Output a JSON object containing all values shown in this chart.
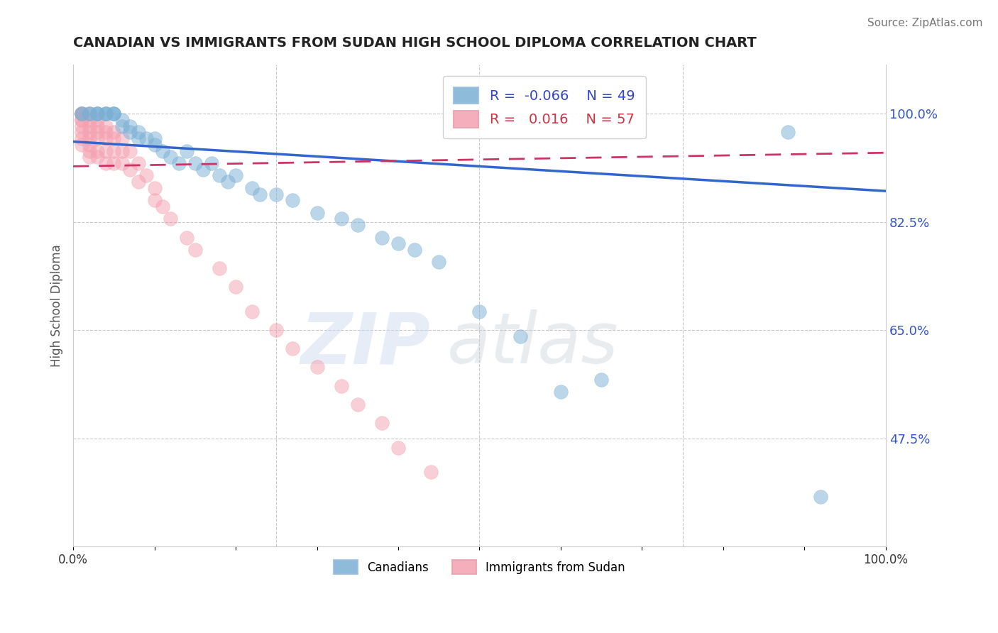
{
  "title": "CANADIAN VS IMMIGRANTS FROM SUDAN HIGH SCHOOL DIPLOMA CORRELATION CHART",
  "source": "Source: ZipAtlas.com",
  "ylabel": "High School Diploma",
  "ytick_labels": [
    "100.0%",
    "82.5%",
    "65.0%",
    "47.5%"
  ],
  "ytick_values": [
    1.0,
    0.825,
    0.65,
    0.475
  ],
  "ymin": 0.3,
  "ymax": 1.08,
  "xmin": 0.0,
  "xmax": 1.0,
  "canadian_R": -0.066,
  "canadian_N": 49,
  "sudan_R": 0.016,
  "sudan_N": 57,
  "canadian_color": "#7bafd4",
  "sudan_color": "#f4a0b0",
  "canadian_line_color": "#3366cc",
  "sudan_line_color": "#cc3366",
  "legend_label_canadian": "Canadians",
  "legend_label_sudan": "Immigrants from Sudan",
  "canadian_x": [
    0.01,
    0.01,
    0.02,
    0.02,
    0.03,
    0.03,
    0.03,
    0.04,
    0.04,
    0.04,
    0.05,
    0.05,
    0.05,
    0.06,
    0.06,
    0.07,
    0.07,
    0.08,
    0.08,
    0.09,
    0.1,
    0.1,
    0.11,
    0.12,
    0.13,
    0.14,
    0.15,
    0.16,
    0.17,
    0.18,
    0.19,
    0.2,
    0.22,
    0.23,
    0.25,
    0.27,
    0.3,
    0.33,
    0.35,
    0.38,
    0.4,
    0.42,
    0.45,
    0.5,
    0.55,
    0.6,
    0.65,
    0.88,
    0.92
  ],
  "canadian_y": [
    1.0,
    1.0,
    1.0,
    1.0,
    1.0,
    1.0,
    1.0,
    1.0,
    1.0,
    1.0,
    1.0,
    1.0,
    1.0,
    0.99,
    0.98,
    0.98,
    0.97,
    0.96,
    0.97,
    0.96,
    0.95,
    0.96,
    0.94,
    0.93,
    0.92,
    0.94,
    0.92,
    0.91,
    0.92,
    0.9,
    0.89,
    0.9,
    0.88,
    0.87,
    0.87,
    0.86,
    0.84,
    0.83,
    0.82,
    0.8,
    0.79,
    0.78,
    0.76,
    0.68,
    0.64,
    0.55,
    0.57,
    0.97,
    0.38
  ],
  "sudan_x": [
    0.01,
    0.01,
    0.01,
    0.01,
    0.01,
    0.01,
    0.01,
    0.01,
    0.01,
    0.02,
    0.02,
    0.02,
    0.02,
    0.02,
    0.02,
    0.02,
    0.02,
    0.03,
    0.03,
    0.03,
    0.03,
    0.03,
    0.03,
    0.04,
    0.04,
    0.04,
    0.04,
    0.04,
    0.05,
    0.05,
    0.05,
    0.05,
    0.06,
    0.06,
    0.06,
    0.07,
    0.07,
    0.08,
    0.08,
    0.09,
    0.1,
    0.1,
    0.11,
    0.12,
    0.14,
    0.15,
    0.18,
    0.2,
    0.22,
    0.25,
    0.27,
    0.3,
    0.33,
    0.35,
    0.38,
    0.4,
    0.44
  ],
  "sudan_y": [
    1.0,
    1.0,
    1.0,
    0.99,
    0.99,
    0.98,
    0.97,
    0.96,
    0.95,
    1.0,
    0.99,
    0.98,
    0.97,
    0.96,
    0.95,
    0.94,
    0.93,
    0.99,
    0.98,
    0.97,
    0.96,
    0.94,
    0.93,
    0.98,
    0.97,
    0.96,
    0.94,
    0.92,
    0.97,
    0.96,
    0.94,
    0.92,
    0.96,
    0.94,
    0.92,
    0.94,
    0.91,
    0.92,
    0.89,
    0.9,
    0.88,
    0.86,
    0.85,
    0.83,
    0.8,
    0.78,
    0.75,
    0.72,
    0.68,
    0.65,
    0.62,
    0.59,
    0.56,
    0.53,
    0.5,
    0.46,
    0.42
  ]
}
